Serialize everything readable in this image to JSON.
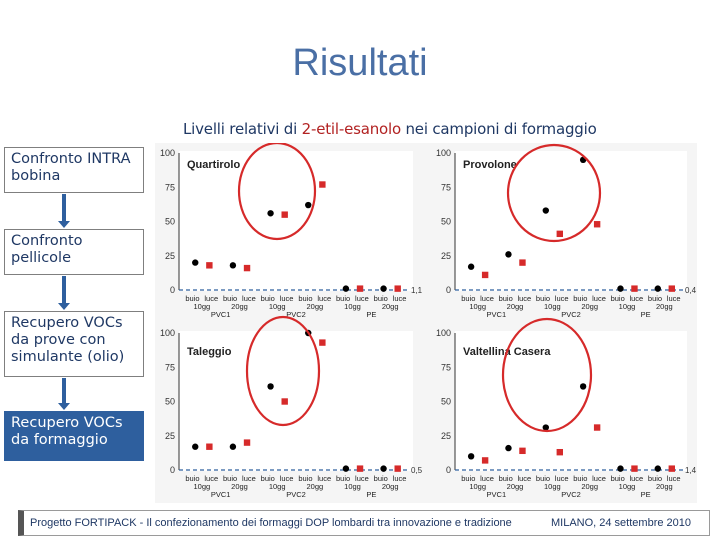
{
  "slide": {
    "title": "Risultati",
    "subtitle_pre": "Livelli relativi di ",
    "subtitle_highlight": "2-etil-esanolo",
    "subtitle_post": " nei campioni di formaggio"
  },
  "sidebar": {
    "items": [
      {
        "label": "Confronto INTRA bobina",
        "active": false
      },
      {
        "label": "Confronto pellicole",
        "active": false
      },
      {
        "label": "Recupero VOCs da prove con simulante (olio)",
        "active": false
      },
      {
        "label": "Recupero VOCs da formaggio",
        "active": true
      }
    ]
  },
  "footer": {
    "left": "Progetto FORTIPACK - Il confezionamento dei formaggi DOP lombardi tra innovazione e tradizione",
    "right": "MILANO, 24 settembre 2010"
  },
  "colors": {
    "dark": "#000000",
    "light": "#d62a2a",
    "circle": "#d62a2a",
    "accent": "#2e5f9e"
  },
  "chart_data": [
    {
      "type": "scatter",
      "title": "Quartirolo",
      "ylim": [
        0,
        100
      ],
      "yticks": [
        "100",
        "75",
        "50",
        "25",
        "0"
      ],
      "end_label": "1,1",
      "x_labels": [
        "buio",
        "luce",
        "buio",
        "luce",
        "buio",
        "luce",
        "buio",
        "luce",
        "buio",
        "luce",
        "buio",
        "luce"
      ],
      "x_groups": [
        "10gg",
        "20gg",
        "10gg",
        "20gg",
        "10gg",
        "20gg"
      ],
      "x_films": [
        "PVC1",
        "PVC2",
        "PE"
      ],
      "series": [
        {
          "name": "buio",
          "values": [
            20,
            18,
            56,
            62,
            1,
            1
          ]
        },
        {
          "name": "luce",
          "values": [
            18,
            16,
            55,
            77,
            1,
            1
          ]
        }
      ]
    },
    {
      "type": "scatter",
      "title": "Provolone",
      "ylim": [
        0,
        100
      ],
      "yticks": [
        "100",
        "75",
        "50",
        "25",
        "0"
      ],
      "end_label": "0,4",
      "x_labels": [
        "buio",
        "luce",
        "buio",
        "luce",
        "buio",
        "luce",
        "buio",
        "luce",
        "buio",
        "luce",
        "buio",
        "luce"
      ],
      "x_groups": [
        "10gg",
        "20gg",
        "10gg",
        "20gg",
        "10gg",
        "20gg"
      ],
      "x_films": [
        "PVC1",
        "PVC2",
        "PE"
      ],
      "series": [
        {
          "name": "buio",
          "values": [
            17,
            26,
            58,
            95,
            1,
            1
          ]
        },
        {
          "name": "luce",
          "values": [
            11,
            20,
            41,
            48,
            1,
            1
          ]
        }
      ]
    },
    {
      "type": "scatter",
      "title": "Taleggio",
      "ylim": [
        0,
        100
      ],
      "yticks": [
        "100",
        "75",
        "50",
        "25",
        "0"
      ],
      "end_label": "0,5",
      "x_labels": [
        "buio",
        "luce",
        "buio",
        "luce",
        "buio",
        "luce",
        "buio",
        "luce",
        "buio",
        "luce",
        "buio",
        "luce"
      ],
      "x_groups": [
        "10gg",
        "20gg",
        "10gg",
        "20gg",
        "10gg",
        "20gg"
      ],
      "x_films": [
        "PVC1",
        "PVC2",
        "PE"
      ],
      "series": [
        {
          "name": "buio",
          "values": [
            17,
            17,
            61,
            100,
            1,
            1
          ]
        },
        {
          "name": "luce",
          "values": [
            17,
            20,
            50,
            93,
            1,
            1
          ]
        }
      ]
    },
    {
      "type": "scatter",
      "title": "Valtellina Casera",
      "ylim": [
        0,
        100
      ],
      "yticks": [
        "100",
        "75",
        "50",
        "25",
        "0"
      ],
      "end_label": "1,4",
      "x_labels": [
        "buio",
        "luce",
        "buio",
        "luce",
        "buio",
        "luce",
        "buio",
        "luce",
        "buio",
        "luce",
        "buio",
        "luce"
      ],
      "x_groups": [
        "10gg",
        "20gg",
        "10gg",
        "20gg",
        "10gg",
        "20gg"
      ],
      "x_films": [
        "PVC1",
        "PVC2",
        "PE"
      ],
      "series": [
        {
          "name": "buio",
          "values": [
            10,
            16,
            31,
            61,
            1,
            1
          ]
        },
        {
          "name": "luce",
          "values": [
            7,
            14,
            13,
            31,
            1,
            1
          ]
        }
      ]
    }
  ]
}
